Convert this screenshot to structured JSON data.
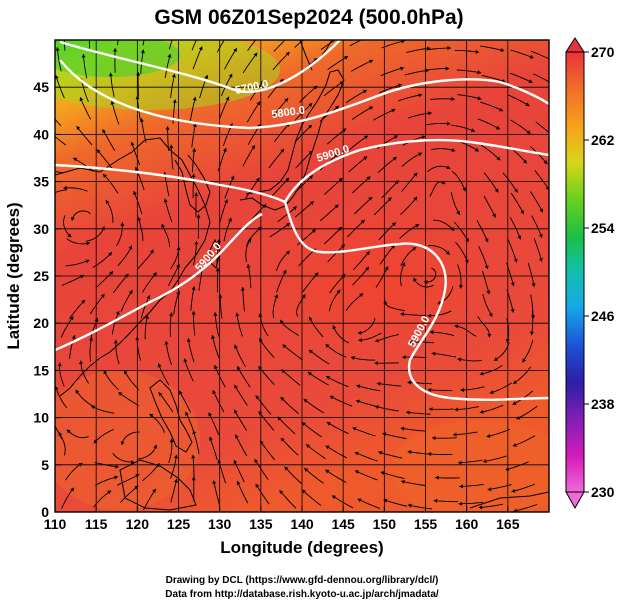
{
  "title": "GSM 06Z01Sep2024 (500.0hPa)",
  "x_axis": {
    "label": "Longitude (degrees)",
    "range": [
      110,
      170
    ],
    "ticks": [
      "110",
      "115",
      "120",
      "125",
      "130",
      "135",
      "140",
      "145",
      "150",
      "155",
      "160",
      "165"
    ]
  },
  "y_axis": {
    "label": "Latitude  (degrees)",
    "range": [
      0,
      50
    ],
    "ticks": [
      "0",
      "5",
      "10",
      "15",
      "20",
      "25",
      "30",
      "35",
      "40",
      "45"
    ]
  },
  "colorbar": {
    "range": [
      230,
      270
    ],
    "labels": [
      "270",
      "262",
      "254",
      "246",
      "238",
      "230"
    ],
    "colors": [
      "#e8323c",
      "#f26b28",
      "#f7a21b",
      "#d8d51a",
      "#6fd11c",
      "#1bbf46",
      "#12bfb0",
      "#16a8e8",
      "#1e4fd6",
      "#2b1fa6",
      "#7d1fb5",
      "#d41cb9",
      "#f06ad8"
    ]
  },
  "contours": [
    {
      "label": "5700.0",
      "value": 5700
    },
    {
      "label": "5800.0",
      "value": 5800
    },
    {
      "label": "5900.0",
      "value": 5900
    },
    {
      "label": "5900.0",
      "value": 5900
    },
    {
      "label": "5900.0",
      "value": 5900
    }
  ],
  "credits": {
    "line1": "Drawing by DCL (https://www.gfd-dennou.org/library/dcl/)",
    "line2": "Data from http://database.rish.kyoto-u.ac.jp/arch/jmadata/"
  }
}
